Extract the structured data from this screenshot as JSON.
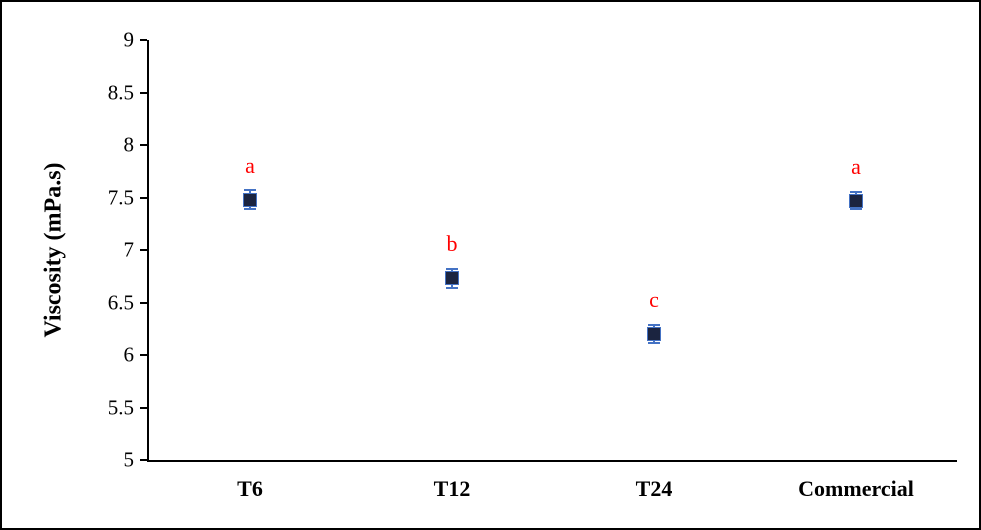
{
  "frame": {
    "background": "#ffffff",
    "border_color": "#000000"
  },
  "chart_data": {
    "type": "scatter",
    "title": "",
    "xlabel": "",
    "ylabel": "Viscosity (mPa.s)",
    "categories": [
      "T6",
      "T12",
      "T24",
      "Commercial"
    ],
    "series": [
      {
        "name": "Viscosity",
        "values": [
          7.48,
          6.73,
          6.2,
          7.47
        ],
        "errors": [
          0.09,
          0.09,
          0.09,
          0.08
        ],
        "point_labels": [
          "a",
          "b",
          "c",
          "a"
        ]
      }
    ],
    "ylim": [
      5,
      9
    ],
    "ytick_labels": [
      "9",
      "8.5",
      "8",
      "7.5",
      "7",
      "6.5",
      "6",
      "5.5",
      "5"
    ],
    "grid": false,
    "legend": "none",
    "marker": "filled-square",
    "colors": {
      "marker_fill": "#1b2440",
      "marker_border": "#4472c4",
      "error_bar": "#4472c4",
      "point_label": "#ff0000",
      "axis": "#000000"
    }
  }
}
